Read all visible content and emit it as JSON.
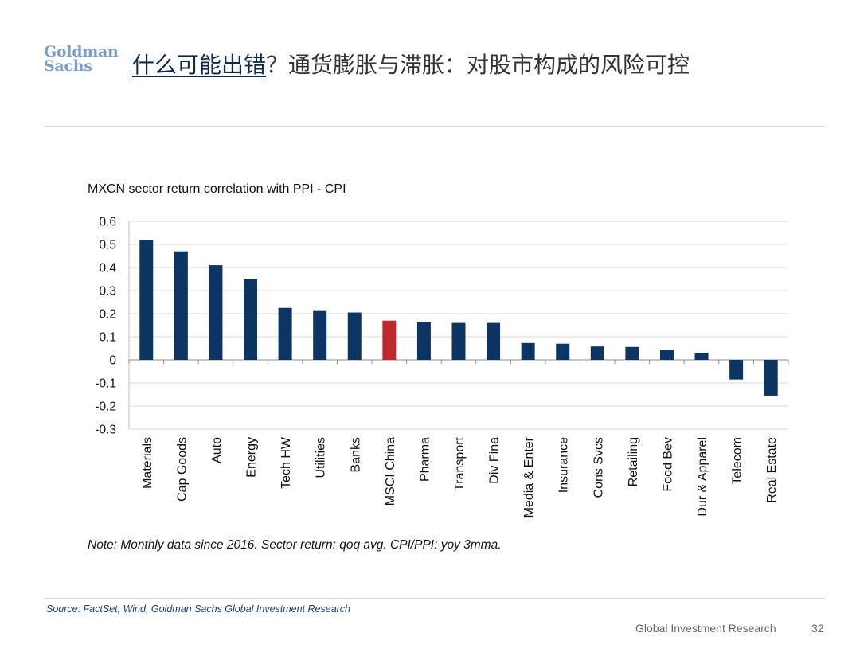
{
  "header": {
    "logo_line1": "Goldman",
    "logo_line2": "Sachs",
    "title_highlight": "什么可能出错",
    "title_rest": "？通货膨胀与滞胀：对股市构成的风险可控"
  },
  "colors": {
    "bar": "#0d3563",
    "highlight": "#c0282d",
    "grid": "#d9d9d9"
  },
  "chart_data": {
    "type": "bar",
    "title": "MXCN sector return correlation with PPI - CPI",
    "categories": [
      "Materials",
      "Cap Goods",
      "Auto",
      "Energy",
      "Tech HW",
      "Utilities",
      "Banks",
      "MSCI China",
      "Pharma",
      "Transport",
      "Div Fina",
      "Media & Enter",
      "Insurance",
      "Cons Svcs",
      "Retailing",
      "Food Bev",
      "Dur & Apparel",
      "Telecom",
      "Real Estate"
    ],
    "values": [
      0.52,
      0.47,
      0.41,
      0.35,
      0.225,
      0.215,
      0.205,
      0.17,
      0.165,
      0.16,
      0.16,
      0.073,
      0.07,
      0.058,
      0.056,
      0.042,
      0.03,
      -0.085,
      -0.155
    ],
    "highlight_category": "MSCI China",
    "ylim": [
      -0.3,
      0.6
    ],
    "yticks": [
      -0.3,
      -0.2,
      -0.1,
      0,
      0.1,
      0.2,
      0.3,
      0.4,
      0.5,
      0.6
    ],
    "ytick_labels": [
      "-0.3",
      "-0.2",
      "-0.1",
      "0",
      "0.1",
      "0.2",
      "0.3",
      "0.4",
      "0.5",
      "0.6"
    ],
    "xlabel": "",
    "ylabel": "",
    "grid": true,
    "legend": "none"
  },
  "note": "Note: Monthly data since 2016. Sector return: qoq avg. CPI/PPI: yoy 3mma.",
  "source": "Source: FactSet, Wind, Goldman Sachs Global Investment Research",
  "footer": {
    "label": "Global Investment Research",
    "page": "32"
  }
}
